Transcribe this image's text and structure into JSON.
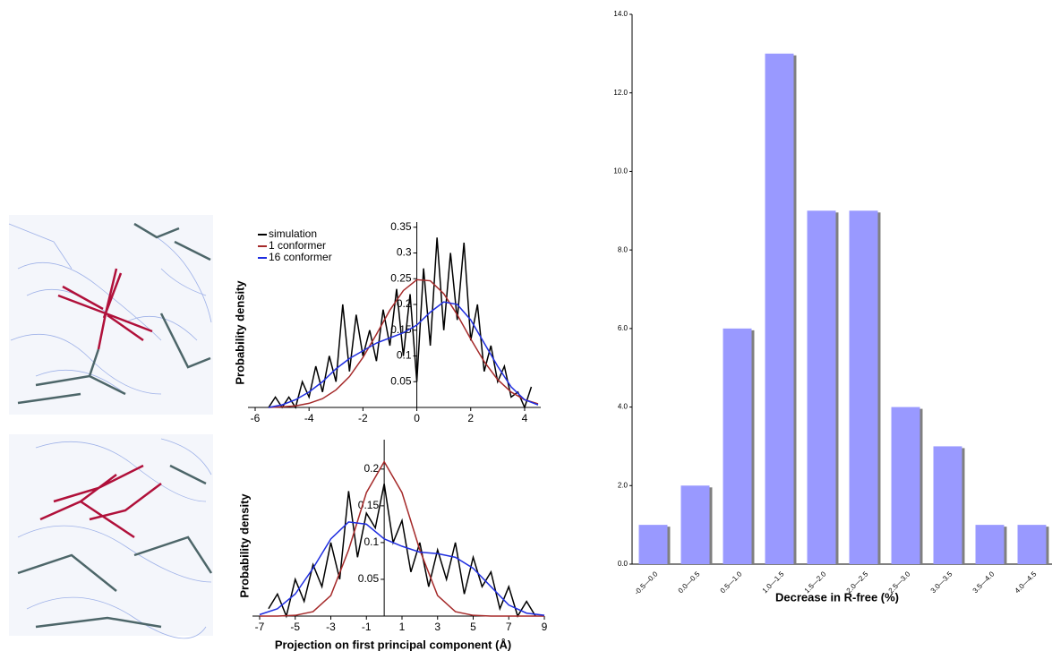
{
  "chart_data": [
    {
      "type": "line",
      "ylabel": "Probability density",
      "xlim": [
        -6,
        4.6
      ],
      "ylim": [
        0,
        0.36
      ],
      "xticks": [
        -6,
        -4,
        -2,
        0,
        2,
        4
      ],
      "yticks": [
        0.05,
        0.1,
        0.15,
        0.2,
        0.25,
        0.3,
        0.35
      ],
      "series": [
        {
          "name": "simulation",
          "color": "#000000",
          "x": [
            -5.5,
            -5.25,
            -5,
            -4.75,
            -4.5,
            -4.25,
            -4,
            -3.75,
            -3.5,
            -3.25,
            -3,
            -2.75,
            -2.5,
            -2.25,
            -2,
            -1.75,
            -1.5,
            -1.25,
            -1,
            -0.75,
            -0.5,
            -0.25,
            0,
            0.25,
            0.5,
            0.75,
            1,
            1.25,
            1.5,
            1.75,
            2,
            2.25,
            2.5,
            2.75,
            3,
            3.25,
            3.5,
            3.75,
            4,
            4.25
          ],
          "values": [
            0,
            0.02,
            0,
            0.02,
            0,
            0.05,
            0.02,
            0.08,
            0.03,
            0.1,
            0.05,
            0.2,
            0.07,
            0.18,
            0.1,
            0.15,
            0.09,
            0.19,
            0.12,
            0.23,
            0.1,
            0.22,
            0.05,
            0.27,
            0.12,
            0.33,
            0.15,
            0.3,
            0.17,
            0.32,
            0.13,
            0.2,
            0.07,
            0.12,
            0.05,
            0.08,
            0.02,
            0.03,
            0,
            0.04
          ]
        },
        {
          "name": "1 conformer",
          "color": "#a52a2a",
          "x": [
            -5.5,
            -5,
            -4.5,
            -4,
            -3.5,
            -3,
            -2.5,
            -2,
            -1.5,
            -1,
            -0.5,
            0,
            0.5,
            1,
            1.5,
            2,
            2.5,
            3,
            3.5,
            4,
            4.5
          ],
          "values": [
            0,
            0.001,
            0.003,
            0.008,
            0.017,
            0.034,
            0.06,
            0.097,
            0.142,
            0.189,
            0.227,
            0.248,
            0.246,
            0.221,
            0.18,
            0.133,
            0.089,
            0.054,
            0.03,
            0.015,
            0.007
          ]
        },
        {
          "name": "16 conformer",
          "color": "#1f2ee0",
          "x": [
            -5.5,
            -5,
            -4.5,
            -4,
            -3.5,
            -3,
            -2.5,
            -2,
            -1.5,
            -1,
            -0.5,
            0,
            0.5,
            1,
            1.5,
            2,
            2.5,
            3,
            3.5,
            4,
            4.5
          ],
          "values": [
            0,
            0.005,
            0.015,
            0.03,
            0.05,
            0.075,
            0.095,
            0.11,
            0.125,
            0.135,
            0.145,
            0.16,
            0.185,
            0.205,
            0.2,
            0.17,
            0.125,
            0.08,
            0.04,
            0.015,
            0.005
          ]
        }
      ]
    },
    {
      "type": "line",
      "ylabel": "Probability density",
      "xlabel": "Projection on first principal component (Å)",
      "xlim": [
        -7,
        9
      ],
      "ylim": [
        0,
        0.24
      ],
      "xticks": [
        -7,
        -5,
        -3,
        -1,
        1,
        3,
        5,
        7,
        9
      ],
      "yticks": [
        0.05,
        0.1,
        0.15,
        0.2
      ],
      "series": [
        {
          "name": "simulation",
          "color": "#000000",
          "x": [
            -6.5,
            -6,
            -5.5,
            -5,
            -4.5,
            -4,
            -3.5,
            -3,
            -2.5,
            -2,
            -1.5,
            -1,
            -0.5,
            0,
            0.5,
            1,
            1.5,
            2,
            2.5,
            3,
            3.5,
            4,
            4.5,
            5,
            5.5,
            6,
            6.5,
            7,
            7.5,
            8,
            8.5
          ],
          "values": [
            0.01,
            0.03,
            0,
            0.05,
            0.02,
            0.07,
            0.04,
            0.1,
            0.05,
            0.17,
            0.08,
            0.14,
            0.12,
            0.18,
            0.1,
            0.13,
            0.06,
            0.1,
            0.04,
            0.09,
            0.05,
            0.1,
            0.03,
            0.08,
            0.04,
            0.06,
            0.01,
            0.04,
            0,
            0.02,
            0
          ]
        },
        {
          "name": "1 conformer",
          "color": "#a52a2a",
          "x": [
            -7,
            -6,
            -5,
            -4,
            -3,
            -2,
            -1,
            0,
            1,
            2,
            3,
            4,
            5,
            6,
            7,
            8,
            9
          ],
          "values": [
            0,
            0,
            0.001,
            0.006,
            0.028,
            0.09,
            0.168,
            0.21,
            0.168,
            0.09,
            0.028,
            0.006,
            0.001,
            0,
            0,
            0,
            0
          ]
        },
        {
          "name": "16 conformer",
          "color": "#1f2ee0",
          "x": [
            -7,
            -6,
            -5,
            -4,
            -3,
            -2,
            -1,
            0,
            1,
            2,
            3,
            4,
            5,
            6,
            7,
            8,
            9
          ],
          "values": [
            0.002,
            0.01,
            0.03,
            0.065,
            0.105,
            0.128,
            0.125,
            0.105,
            0.095,
            0.087,
            0.085,
            0.08,
            0.065,
            0.04,
            0.015,
            0.004,
            0.001
          ]
        }
      ]
    },
    {
      "type": "bar",
      "xlabel": "Decrease in R-free (%)",
      "color": "#9999ff",
      "categories": [
        "-0.5—0.0",
        "0.0—0.5",
        "0.5—1.0",
        "1.0—1.5",
        "1.5—2.0",
        "2.0—2.5",
        "2.5—3.0",
        "3.0—3.5",
        "3.5—4.0",
        "4.0—4.5"
      ],
      "values": [
        1,
        2,
        6,
        13,
        9,
        9,
        4,
        3,
        1,
        1
      ],
      "ylim": [
        0,
        14
      ],
      "yticks": [
        {
          "value": 0,
          "label": "0.0"
        },
        {
          "value": 2,
          "label": "2.0"
        },
        {
          "value": 4,
          "label": "4.0"
        },
        {
          "value": 6,
          "label": "6.0"
        },
        {
          "value": 8,
          "label": "8.0"
        },
        {
          "value": 10,
          "label": "10.0"
        },
        {
          "value": 12,
          "label": "12.0"
        },
        {
          "value": 14,
          "label": "14.0"
        }
      ]
    }
  ]
}
